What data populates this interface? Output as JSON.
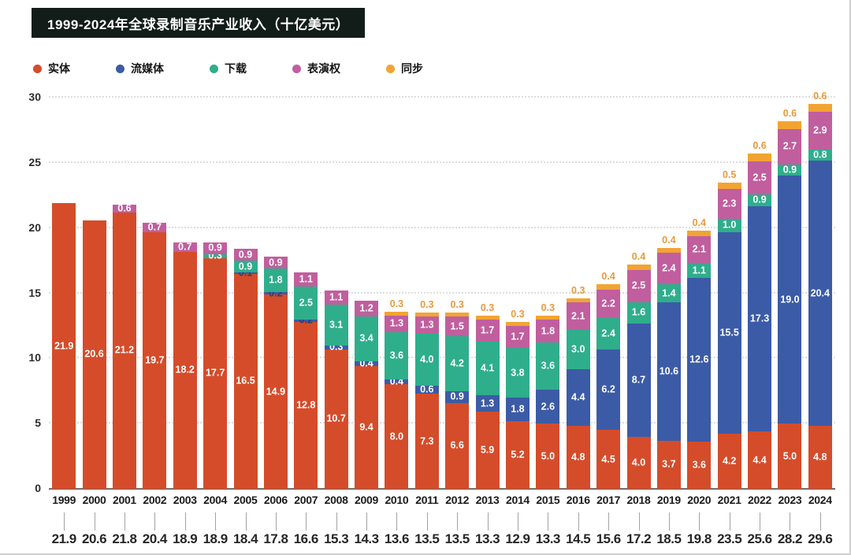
{
  "title_bar": {
    "text": "1999-2024年全球录制音乐产业收入（十亿美元）",
    "bg_color": "#121d19",
    "text_color": "#ffffff"
  },
  "chart_data": {
    "type": "bar",
    "stacked": true,
    "title": "1999-2024年全球录制音乐产业收入（十亿美元）",
    "categories": [
      1999,
      2000,
      2001,
      2002,
      2003,
      2004,
      2005,
      2006,
      2007,
      2008,
      2009,
      2010,
      2011,
      2012,
      2013,
      2014,
      2015,
      2016,
      2017,
      2018,
      2019,
      2020,
      2021,
      2022,
      2023,
      2024
    ],
    "series": [
      {
        "key": "physical",
        "name": "实体",
        "color": "#d54c2a",
        "values": [
          21.9,
          20.6,
          21.2,
          19.7,
          18.2,
          17.7,
          16.5,
          14.9,
          12.8,
          10.7,
          9.4,
          8.0,
          7.3,
          6.6,
          5.9,
          5.2,
          5.0,
          4.8,
          4.5,
          4.0,
          3.7,
          3.6,
          4.2,
          4.4,
          5.0,
          4.8
        ]
      },
      {
        "key": "streaming",
        "name": "流媒体",
        "color": "#3c5ba6",
        "values": [
          0,
          0,
          0,
          0,
          0,
          0,
          0.1,
          0.2,
          0.2,
          0.3,
          0.4,
          0.4,
          0.6,
          0.9,
          1.3,
          1.8,
          2.6,
          4.4,
          6.2,
          8.7,
          10.6,
          12.6,
          15.5,
          17.3,
          19.0,
          20.4
        ]
      },
      {
        "key": "downloads",
        "name": "下载",
        "color": "#2fae8b",
        "values": [
          0,
          0,
          0,
          0,
          0,
          0.3,
          0.9,
          1.8,
          2.5,
          3.1,
          3.4,
          3.6,
          4.0,
          4.2,
          4.1,
          3.8,
          3.6,
          3.0,
          2.4,
          1.6,
          1.4,
          1.1,
          1.0,
          0.9,
          0.9,
          0.8
        ]
      },
      {
        "key": "performance",
        "name": "表演权",
        "color": "#c15e9e",
        "values": [
          0,
          0,
          0.6,
          0.7,
          0.7,
          0.9,
          0.9,
          0.9,
          1.1,
          1.1,
          1.2,
          1.3,
          1.3,
          1.5,
          1.7,
          1.7,
          1.8,
          2.1,
          2.2,
          2.5,
          2.4,
          2.1,
          2.3,
          2.5,
          2.7,
          2.9
        ]
      },
      {
        "key": "sync",
        "name": "同步",
        "color": "#f2a433",
        "values": [
          0,
          0,
          0,
          0,
          0,
          0,
          0,
          0,
          0,
          0,
          0,
          0.3,
          0.3,
          0.3,
          0.3,
          0.3,
          0.3,
          0.3,
          0.4,
          0.4,
          0.4,
          0.4,
          0.5,
          0.6,
          0.6,
          0.6
        ]
      }
    ],
    "totals": [
      21.9,
      20.6,
      21.8,
      20.4,
      18.9,
      18.9,
      18.4,
      17.8,
      16.6,
      15.3,
      14.3,
      13.6,
      13.5,
      13.5,
      13.3,
      12.9,
      13.3,
      14.5,
      15.6,
      17.2,
      18.5,
      19.8,
      23.5,
      25.6,
      28.2,
      29.6
    ],
    "ylim": [
      0,
      30
    ],
    "ytick_step": 5,
    "grid": "horizontal-dotted",
    "legend_position": "top",
    "sync_label_color": "#e89a3e"
  }
}
